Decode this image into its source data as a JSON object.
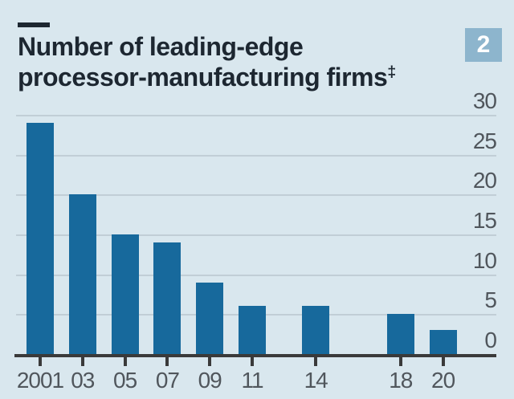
{
  "title": {
    "line1": "Number of leading-edge",
    "line2": "processor-manufacturing firms",
    "footnote_marker": "‡"
  },
  "badge": {
    "label": "2"
  },
  "colors": {
    "background": "#d9e7ee",
    "bar": "#17699c",
    "gridline": "#c1ced6",
    "axis": "#3a3a3a",
    "title_text": "#1d2731",
    "axis_label_text": "#50565c",
    "badge_background": "#8db5cd",
    "badge_text": "#ffffff"
  },
  "chart_data": {
    "type": "bar",
    "title": "Number of leading-edge processor-manufacturing firms‡",
    "categories": [
      "2001",
      "03",
      "05",
      "07",
      "09",
      "11",
      "14",
      "18",
      "20"
    ],
    "x_years": [
      2001,
      2003,
      2005,
      2007,
      2009,
      2011,
      2014,
      2018,
      2020
    ],
    "values": [
      29,
      20,
      15,
      14,
      9,
      6,
      6,
      5,
      3
    ],
    "xlabel": "",
    "ylabel": "",
    "ylim": [
      0,
      30
    ],
    "yticks": [
      0,
      5,
      10,
      15,
      20,
      25,
      30
    ],
    "grid": "horizontal",
    "y_axis_side": "right",
    "x_scale": "linear-by-year",
    "legend": "none"
  }
}
